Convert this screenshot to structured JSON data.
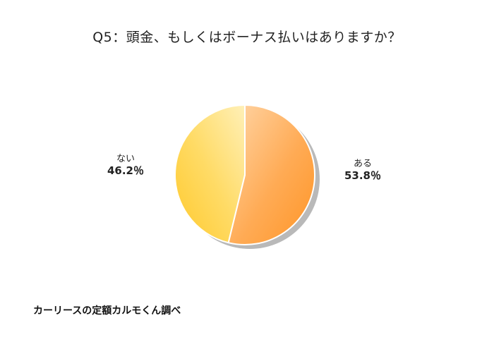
{
  "chart_data": {
    "type": "pie",
    "title": "Q5：頭金、もしくはボーナス払いはありますか？",
    "categories": [
      "ある",
      "ない"
    ],
    "values": [
      53.8,
      46.2
    ],
    "value_labels": [
      "53.8％",
      "46.2％"
    ],
    "colors": [
      "#ff9f33",
      "#ffd34d"
    ],
    "legend": "none",
    "source": "カーリースの定額カルモくん調べ"
  }
}
